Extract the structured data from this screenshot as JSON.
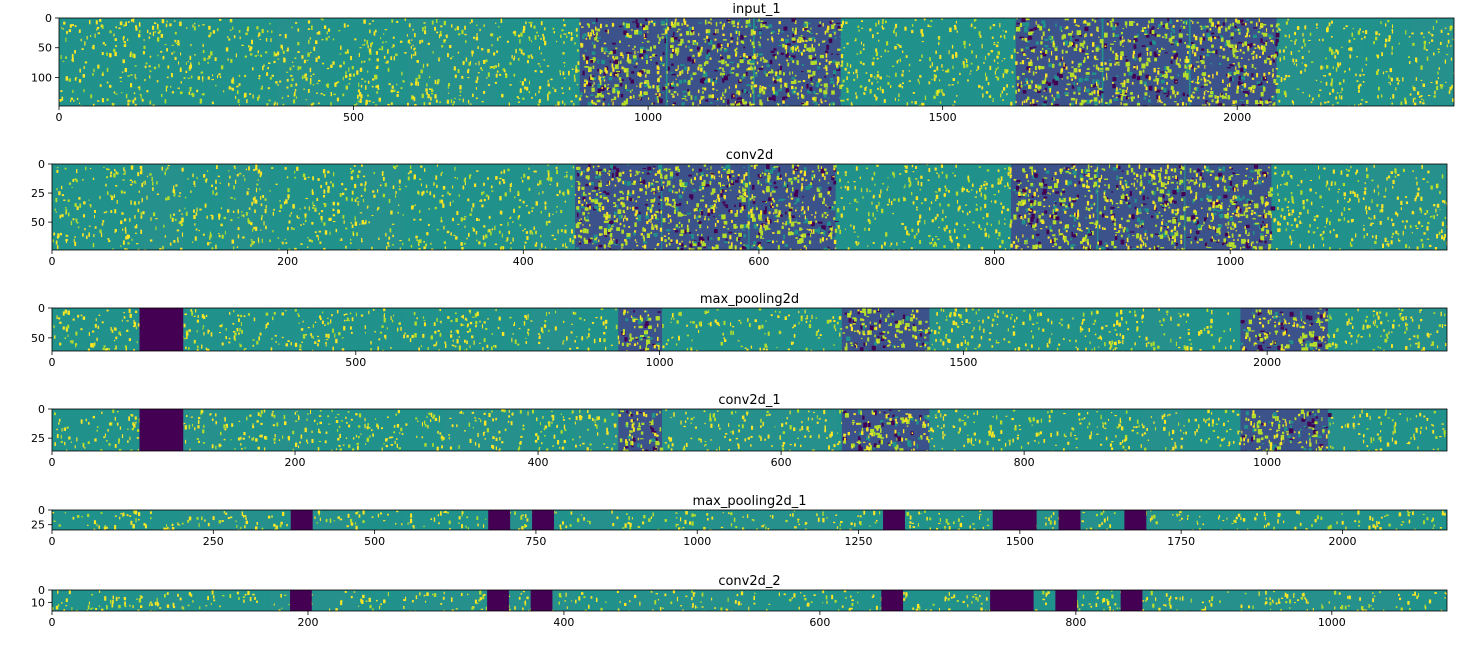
{
  "figure": {
    "colormap": "viridis",
    "colors": {
      "low": "#440154",
      "mid_dark": "#3b528b",
      "mid": "#21918c",
      "mid_teal": "#2a8f8c",
      "high": "#fde725",
      "bright": "#b5de2b",
      "frame": "#000000"
    }
  },
  "chart_data": [
    {
      "type": "heatmap",
      "title": "input_1",
      "xlabel": "",
      "ylabel": "",
      "xlim": [
        0,
        2368
      ],
      "ylim": [
        148,
        0
      ],
      "xticks": [
        0,
        500,
        1000,
        1500,
        2000
      ],
      "yticks": [
        0,
        50,
        100
      ],
      "grid": false,
      "dark_bands": [],
      "bright_bands": [
        [
          884,
          1030
        ],
        [
          1033,
          1178
        ],
        [
          1181,
          1327
        ],
        [
          1624,
          1770
        ],
        [
          1773,
          1918
        ],
        [
          1921,
          2067
        ]
      ]
    },
    {
      "type": "heatmap",
      "title": "conv2d",
      "xlabel": "",
      "ylabel": "",
      "xlim": [
        0,
        1184
      ],
      "ylim": [
        74,
        0
      ],
      "xticks": [
        0,
        200,
        400,
        600,
        800,
        1000
      ],
      "yticks": [
        0,
        25,
        50
      ],
      "grid": false,
      "dark_bands": [],
      "bright_bands": [
        [
          444,
          517
        ],
        [
          518,
          591
        ],
        [
          592,
          665
        ],
        [
          814,
          887
        ],
        [
          888,
          961
        ],
        [
          962,
          1035
        ]
      ]
    },
    {
      "type": "heatmap",
      "title": "max_pooling2d",
      "xlabel": "",
      "ylabel": "",
      "xlim": [
        0,
        2296
      ],
      "ylim": [
        72,
        0
      ],
      "xticks": [
        0,
        500,
        1000,
        1500,
        2000
      ],
      "yticks": [
        0,
        50
      ],
      "grid": false,
      "dark_bands": [
        [
          144,
          216
        ]
      ],
      "bright_bands": [
        [
          932,
          1004
        ],
        [
          1300,
          1372
        ],
        [
          1372,
          1444
        ],
        [
          1956,
          2028
        ],
        [
          2028,
          2100
        ]
      ]
    },
    {
      "type": "heatmap",
      "title": "conv2d_1",
      "xlabel": "",
      "ylabel": "",
      "xlim": [
        0,
        1148
      ],
      "ylim": [
        36,
        0
      ],
      "xticks": [
        0,
        200,
        400,
        600,
        800,
        1000
      ],
      "yticks": [
        0,
        25
      ],
      "grid": false,
      "dark_bands": [
        [
          72,
          108
        ]
      ],
      "bright_bands": [
        [
          466,
          502
        ],
        [
          650,
          686
        ],
        [
          686,
          722
        ],
        [
          978,
          1014
        ],
        [
          1014,
          1050
        ]
      ]
    },
    {
      "type": "heatmap",
      "title": "max_pooling2d_1",
      "xlabel": "",
      "ylabel": "",
      "xlim": [
        0,
        2162
      ],
      "ylim": [
        34,
        0
      ],
      "xticks": [
        0,
        250,
        500,
        750,
        1000,
        1250,
        1500,
        1750,
        2000
      ],
      "yticks": [
        0,
        25
      ],
      "grid": false,
      "dark_bands": [
        [
          370,
          404
        ],
        [
          676,
          710
        ],
        [
          744,
          778
        ],
        [
          1288,
          1322
        ],
        [
          1458,
          1526
        ],
        [
          1560,
          1594
        ],
        [
          1662,
          1696
        ]
      ],
      "bright_bands": []
    },
    {
      "type": "heatmap",
      "title": "conv2d_2",
      "xlabel": "",
      "ylabel": "",
      "xlim": [
        0,
        1090
      ],
      "ylim": [
        17,
        0
      ],
      "xticks": [
        0,
        200,
        400,
        600,
        800,
        1000
      ],
      "yticks": [
        0,
        10
      ],
      "grid": false,
      "dark_bands": [
        [
          186,
          203
        ],
        [
          340,
          357
        ],
        [
          374,
          391
        ],
        [
          648,
          665
        ],
        [
          733,
          767
        ],
        [
          784,
          801
        ],
        [
          835,
          852
        ]
      ],
      "bright_bands": []
    }
  ]
}
